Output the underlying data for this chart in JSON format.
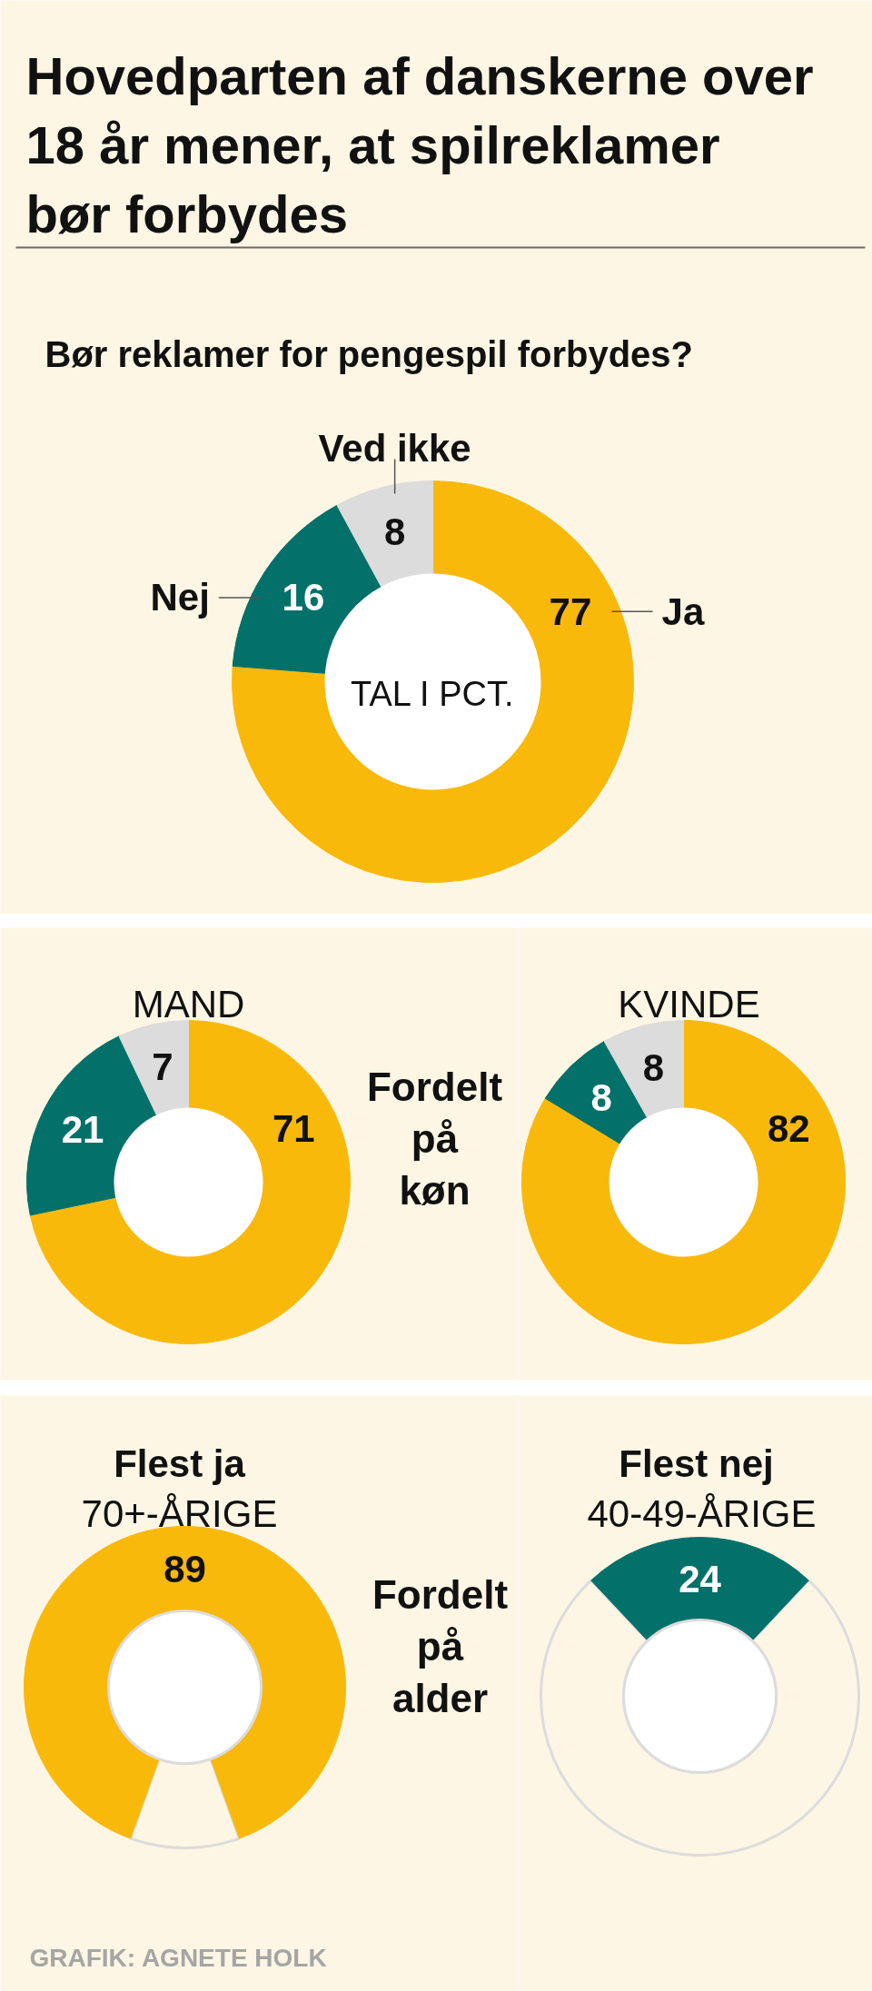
{
  "chart_data": [
    {
      "type": "donut",
      "title": "Hovedparten af danskerne over 18 år mener, at spilreklamer bør forbydes",
      "subtitle": "Bør reklamer for pengespil forbydes?",
      "categories": [
        "Ja",
        "Nej",
        "Ved ikke"
      ],
      "values": [
        77,
        16,
        8
      ],
      "colors": [
        "#f9b90b",
        "#03706a",
        "#dcdcdc"
      ],
      "data_labels": true,
      "annotations": [
        "TAL I PCT."
      ]
    },
    {
      "type": "donut",
      "title": "MAND",
      "categories": [
        null,
        null,
        null
      ],
      "values": [
        71,
        21,
        7
      ],
      "colors": [
        "#f9b90b",
        "#03706a",
        "#dcdcdc"
      ],
      "data_labels": true,
      "annotations": [
        "Fordelt på køn"
      ]
    },
    {
      "type": "donut",
      "title": "KVINDE",
      "categories": [
        null,
        null,
        null
      ],
      "values": [
        82,
        8,
        8
      ],
      "colors": [
        "#f9b90b",
        "#03706a",
        "#dcdcdc"
      ],
      "data_labels": true
    },
    {
      "type": "donut",
      "title": "Flest ja",
      "subtitle": "70+-ÅRIGE",
      "categories": [
        null,
        null
      ],
      "values": [
        89,
        11
      ],
      "colors": [
        "#f9b90b",
        "#fef6e4"
      ],
      "value_labels": [
        "89",
        null
      ],
      "annotations": [
        "Fordelt på alder",
        "GRAFIK: AGNETE HOLK"
      ]
    },
    {
      "type": "donut",
      "title": "Flest nej",
      "subtitle": "40-49-ÅRIGE",
      "categories": [
        null,
        null
      ],
      "values": [
        24,
        76
      ],
      "colors": [
        "#03706a",
        "#fef6e4"
      ],
      "value_labels": [
        "24",
        null
      ]
    }
  ]
}
